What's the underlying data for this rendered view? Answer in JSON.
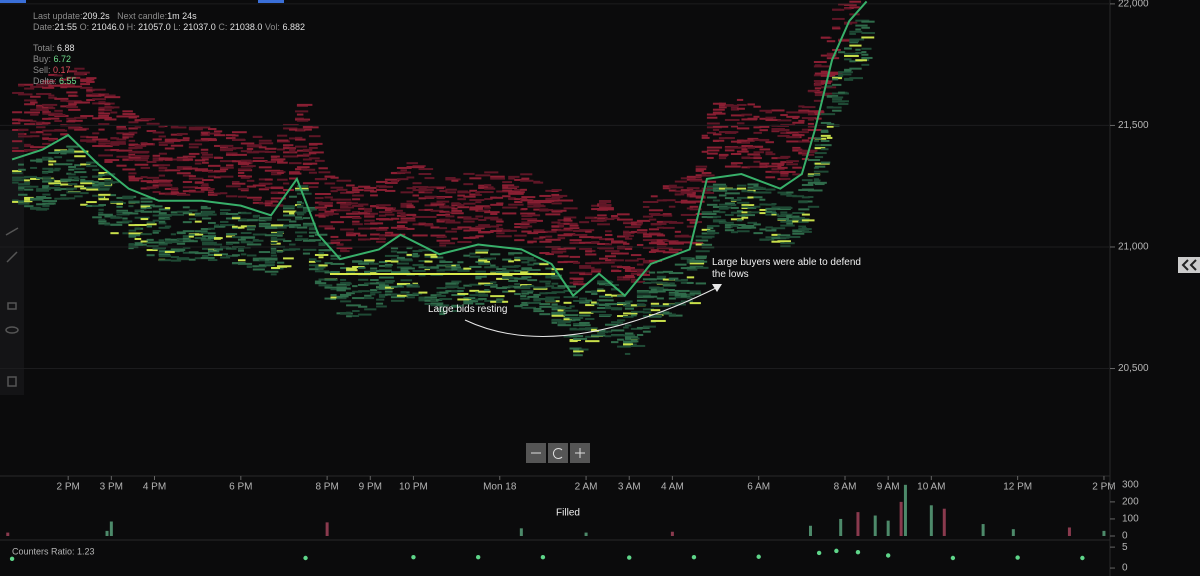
{
  "header": {
    "last_update_label": "Last update:",
    "last_update": "209.2s",
    "next_candle_label": "Next candle:",
    "next_candle": "1m 24s",
    "date_label": "Date:",
    "date": "21:55",
    "open_label": "O:",
    "open": "21046.0",
    "high_label": "H:",
    "high": "21057.0",
    "low_label": "L:",
    "low": "21037.0",
    "close_label": "C:",
    "close": "21038.0",
    "vol_label": "Vol:",
    "vol": "6.882"
  },
  "summary": {
    "total_label": "Total:",
    "total": "6.88",
    "buy_label": "Buy:",
    "buy": "6.72",
    "sell_label": "Sell:",
    "sell": "0.17",
    "delta_label": "Delta:",
    "delta": "6.55"
  },
  "chart": {
    "xlim": [
      -1.58,
      24.14
    ],
    "xticks": [
      {
        "value": 0,
        "label": "2 PM"
      },
      {
        "value": 1,
        "label": "3 PM"
      },
      {
        "value": 2,
        "label": "4 PM"
      },
      {
        "value": 4,
        "label": "6 PM"
      },
      {
        "value": 6,
        "label": "8 PM"
      },
      {
        "value": 7,
        "label": "9 PM"
      },
      {
        "value": 8,
        "label": "10 PM"
      },
      {
        "value": 10,
        "label": "Mon 18"
      },
      {
        "value": 12,
        "label": "2 AM"
      },
      {
        "value": 13,
        "label": "3 AM"
      },
      {
        "value": 14,
        "label": "4 AM"
      },
      {
        "value": 16,
        "label": "6 AM"
      },
      {
        "value": 18,
        "label": "8 AM"
      },
      {
        "value": 19,
        "label": "9 AM"
      },
      {
        "value": 20,
        "label": "10 AM"
      },
      {
        "value": 22,
        "label": "12 PM"
      },
      {
        "value": 24,
        "label": "2 PM"
      }
    ],
    "ylim": [
      20062,
      22016
    ],
    "yticks": [
      {
        "value": 22000,
        "label": "22,000"
      },
      {
        "value": 21500,
        "label": "21,500"
      },
      {
        "value": 21000,
        "label": "21,000"
      },
      {
        "value": 20500,
        "label": "20,500"
      }
    ],
    "price": {
      "x": [
        -1.3,
        -0.6,
        0,
        0.7,
        1.4,
        2.1,
        3.1,
        4.0,
        4.7,
        5.3,
        5.8,
        6.3,
        7.2,
        7.7,
        8.6,
        9.5,
        10.5,
        11.2,
        11.7,
        12.3,
        12.9,
        13.5,
        14.4,
        14.8,
        15.6,
        16.5,
        17.0,
        17.3,
        17.7,
        18.1,
        18.5
      ],
      "values": [
        21360,
        21400,
        21460,
        21340,
        21240,
        21190,
        21190,
        21170,
        21130,
        21280,
        21050,
        20950,
        20990,
        21050,
        20970,
        21010,
        20990,
        20930,
        20800,
        20890,
        20800,
        20930,
        20990,
        21280,
        21300,
        21240,
        21300,
        21480,
        21770,
        21930,
        22010
      ]
    },
    "annotations": [
      "Large bids resting",
      "Large buyers were able to defend the lows"
    ]
  },
  "volume": {
    "title": "Filled",
    "ylim": [
      0,
      340
    ],
    "yticks": [
      0,
      100,
      200,
      300
    ],
    "x": [
      -1.4,
      0.9,
      1.0,
      6.0,
      10.5,
      12.0,
      14.0,
      17.2,
      17.9,
      18.3,
      18.7,
      19.0,
      19.3,
      19.4,
      20.0,
      20.3,
      21.2,
      21.9,
      23.2,
      24.0
    ],
    "values": [
      20,
      30,
      85,
      80,
      45,
      20,
      25,
      60,
      100,
      140,
      120,
      90,
      200,
      300,
      180,
      160,
      70,
      40,
      50,
      30
    ]
  },
  "ratio": {
    "label": "Counters Ratio: 1.23",
    "ylim": [
      -1.9,
      6.7
    ],
    "yticks": [
      0,
      5
    ],
    "x": [
      -1.3,
      5.5,
      8.0,
      9.5,
      11.0,
      13.0,
      14.5,
      16.0,
      17.4,
      17.8,
      18.3,
      19.0,
      20.5,
      22.0,
      23.5
    ],
    "values": [
      2.2,
      2.4,
      2.6,
      2.6,
      2.6,
      2.5,
      2.6,
      2.7,
      3.6,
      4.1,
      3.8,
      3.0,
      2.4,
      2.5,
      2.4
    ]
  }
}
